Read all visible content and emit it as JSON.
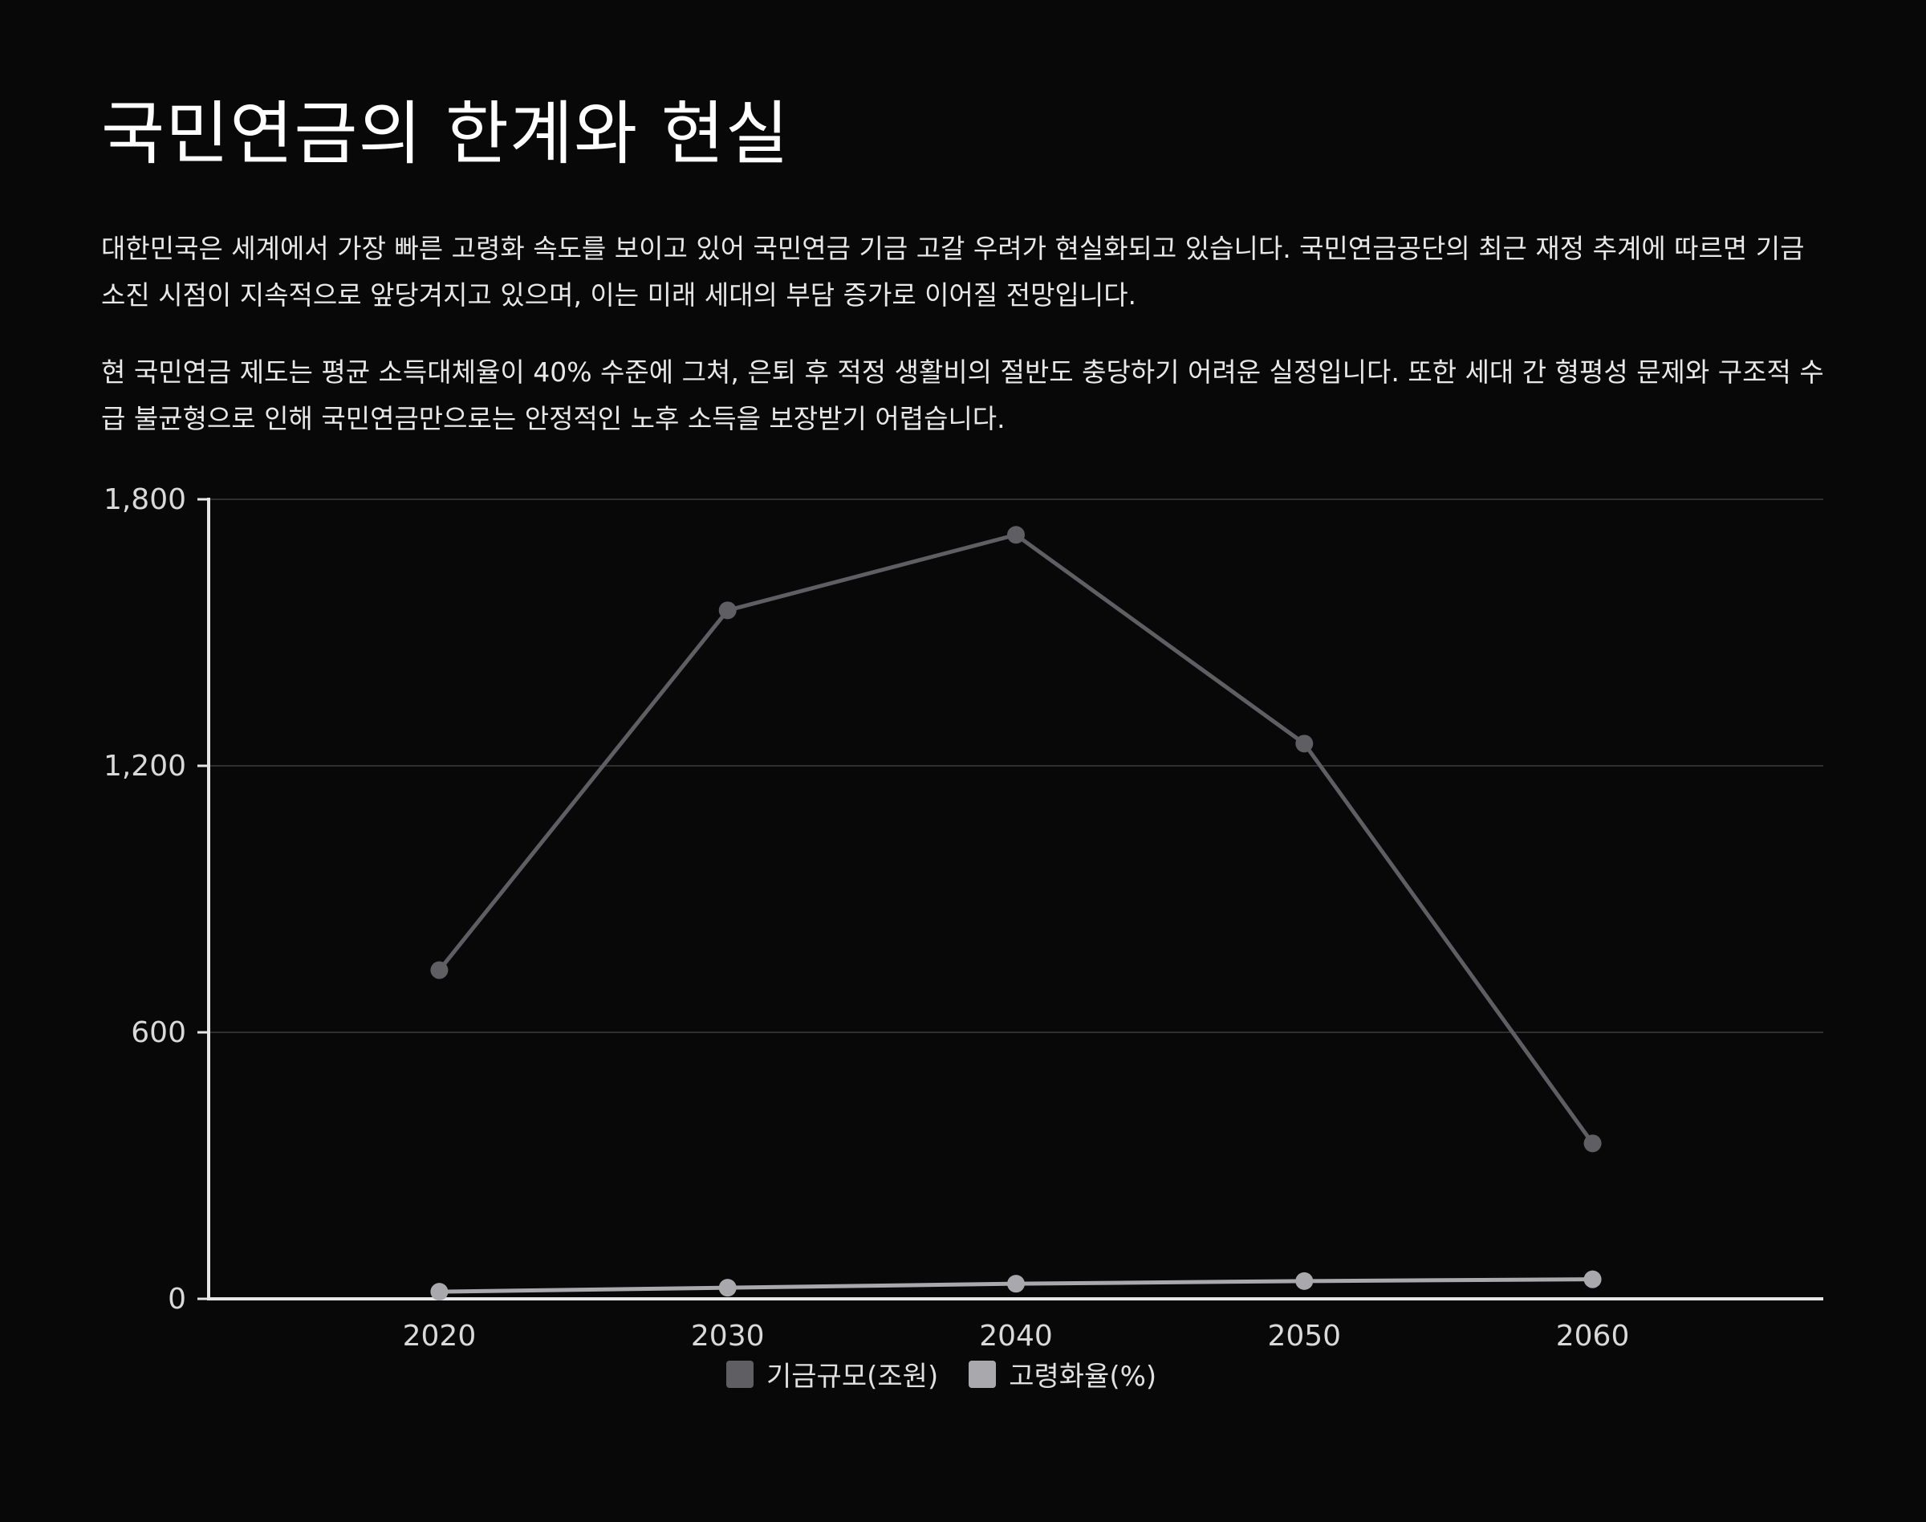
{
  "title": "국민연금의 한계와 현실",
  "paragraphs": [
    "대한민국은 세계에서 가장 빠른 고령화 속도를 보이고 있어 국민연금 기금 고갈 우려가 현실화되고 있습니다. 국민연금공단의 최근 재정 추계에 따르면 기금 소진 시점이 지속적으로 앞당겨지고 있으며, 이는 미래 세대의 부담 증가로 이어질 전망입니다.",
    "현 국민연금 제도는 평균 소득대체율이 40% 수준에 그쳐, 은퇴 후 적정 생활비의 절반도 충당하기 어려운 실정입니다. 또한 세대 간 형평성 문제와 구조적 수급 불균형으로 인해 국민연금만으로는 안정적인 노후 소득을 보장받기 어렵습니다."
  ],
  "colors": {
    "background": "#080808",
    "fund_series": "#5f5e63",
    "aging_series": "#a9a8ad",
    "axis": "#e6e6e6",
    "grid": "#2e2e2e"
  },
  "chart_data": {
    "type": "line",
    "x": [
      2020,
      2030,
      2040,
      2050,
      2060
    ],
    "x_tick_labels": [
      "2020",
      "2030",
      "2040",
      "2050",
      "2060"
    ],
    "x_range": [
      2012,
      2068
    ],
    "ylim": [
      0,
      1800
    ],
    "y_ticks": [
      0,
      600,
      1200,
      1800
    ],
    "y_tick_labels": [
      "0",
      "600",
      "1,200",
      "1,800"
    ],
    "grid": true,
    "legend_position": "bottom-center",
    "series": [
      {
        "name": "기금규모(조원)",
        "color": "#5f5e63",
        "values": [
          740,
          1550,
          1720,
          1250,
          350
        ]
      },
      {
        "name": "고령화율(%)",
        "color": "#a9a8ad",
        "values": [
          16,
          25,
          34,
          40,
          44
        ]
      }
    ]
  }
}
